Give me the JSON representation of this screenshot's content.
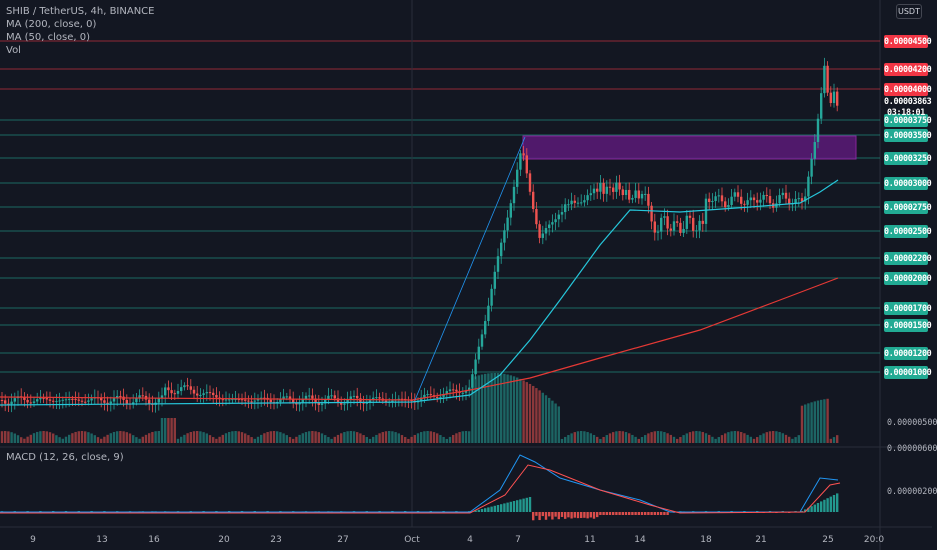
{
  "legend": {
    "title": "SHIB / TetherUS, 4h, BINANCE",
    "ma200": "MA (200, close, 0)",
    "ma50": "MA (50, close, 0)",
    "vol": "Vol",
    "macd": "MACD (12, 26, close, 9)"
  },
  "currency_button": "USDT",
  "price_tags": [
    {
      "text": "0.00004500",
      "color": "#f23645"
    },
    {
      "text": "0.00004200",
      "color": "#f23645"
    },
    {
      "text": "0.00004000",
      "color": "#f23645"
    },
    {
      "text": "0.00003750",
      "color": "#22ab94"
    },
    {
      "text": "0.00003500",
      "color": "#22ab94"
    },
    {
      "text": "0.00003250",
      "color": "#22ab94"
    },
    {
      "text": "0.00003000",
      "color": "#22ab94"
    },
    {
      "text": "0.00002750",
      "color": "#22ab94"
    },
    {
      "text": "0.00002500",
      "color": "#22ab94"
    },
    {
      "text": "0.00002200",
      "color": "#22ab94"
    },
    {
      "text": "0.00002000",
      "color": "#22ab94"
    },
    {
      "text": "0.00001700",
      "color": "#22ab94"
    },
    {
      "text": "0.00001500",
      "color": "#22ab94"
    },
    {
      "text": "0.00001200",
      "color": "#22ab94"
    },
    {
      "text": "0.00001000",
      "color": "#22ab94"
    }
  ],
  "current_price": {
    "price": "0.00003863",
    "countdown": "03:18:01",
    "color": "#26a69a"
  },
  "axis_labels": {
    "vol_axis": "0.00000500",
    "macd_top": "0.00000600",
    "macd_mid": "0.00000200"
  },
  "x_ticks": [
    "9",
    "13",
    "16",
    "20",
    "23",
    "27",
    "Oct",
    "4",
    "7",
    "11",
    "14",
    "18",
    "21",
    "25",
    "20:0"
  ],
  "colors": {
    "up": "#26a69a",
    "down": "#ef5350",
    "ma50": "#26c6da",
    "ma200": "#e53935",
    "zone": "#7b1fa2",
    "macd": "#2196f3",
    "signal": "#ff5252"
  }
}
